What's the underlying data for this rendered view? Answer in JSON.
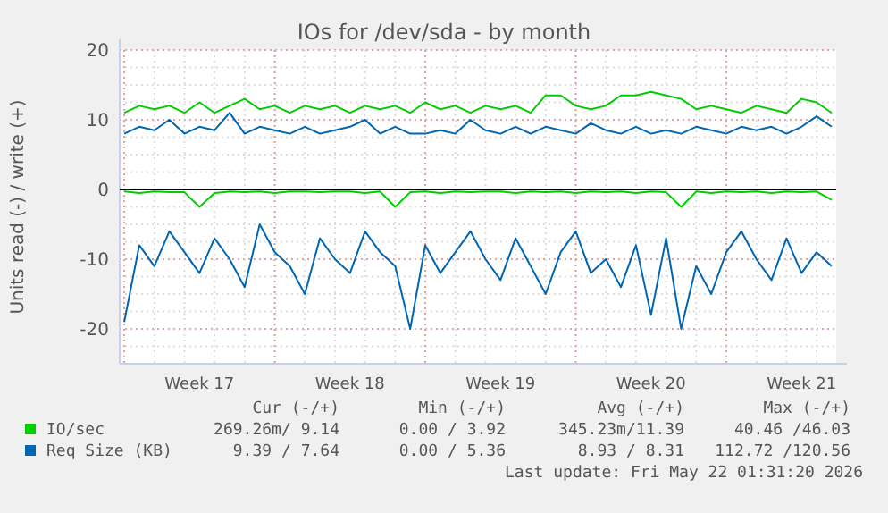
{
  "chart_data": {
    "type": "line",
    "title": "IOs for /dev/sda - by month",
    "ylabel": "Units read (-) / write (+)",
    "categories": [
      null,
      null,
      null,
      null,
      null,
      "Week 17",
      null,
      null,
      null,
      null,
      null,
      null,
      null,
      null,
      null,
      "Week 18",
      null,
      null,
      null,
      null,
      null,
      null,
      null,
      null,
      null,
      "Week 19",
      null,
      null,
      null,
      null,
      null,
      null,
      null,
      null,
      null,
      "Week 20",
      null,
      null,
      null,
      null,
      null,
      null,
      null,
      null,
      null,
      "Week 21",
      null,
      null
    ],
    "ylim": [
      -25,
      20
    ],
    "yticks": [
      -20,
      -10,
      0,
      10,
      20
    ],
    "grid": true,
    "legend": "bottom",
    "marker": "none",
    "line_style": "solid",
    "series": [
      {
        "name": "IO/sec",
        "color": "#00cc00",
        "values": [
          11,
          12,
          11.5,
          12,
          11,
          12.5,
          11,
          12,
          13,
          11.5,
          12,
          11,
          12,
          11.5,
          12,
          11,
          12,
          11.5,
          12,
          11,
          12.5,
          11.5,
          12,
          11,
          12,
          11.5,
          12,
          11,
          13.5,
          13.5,
          12,
          11.5,
          12,
          13.5,
          13.5,
          14,
          13.5,
          13,
          11.5,
          12,
          11.5,
          11,
          12,
          11.5,
          11,
          13,
          12.5,
          11
        ]
      },
      {
        "color": "#00cc00",
        "values": [
          -0.3,
          -0.5,
          -0.3,
          -0.4,
          -0.4,
          -2.5,
          -0.5,
          -0.3,
          -0.4,
          -0.3,
          -0.5,
          -0.3,
          -0.3,
          -0.4,
          -0.3,
          -0.3,
          -0.5,
          -0.3,
          -2.5,
          -0.4,
          -0.3,
          -0.5,
          -0.3,
          -0.4,
          -0.3,
          -0.3,
          -0.5,
          -0.3,
          -0.4,
          -0.3,
          -0.5,
          -0.3,
          -0.4,
          -0.3,
          -0.5,
          -0.3,
          -0.4,
          -2.5,
          -0.3,
          -0.5,
          -0.3,
          -0.4,
          -0.3,
          -0.5,
          -0.3,
          -0.4,
          -0.3,
          -1.5
        ]
      },
      {
        "name": "Req Size (KB)",
        "color": "#0066b3",
        "values": [
          8,
          9,
          8.5,
          10,
          8,
          9,
          8.5,
          11,
          8,
          9,
          8.5,
          8,
          9,
          8,
          8.5,
          9,
          10,
          8,
          9,
          8,
          8,
          8.5,
          8,
          10,
          8.5,
          8,
          9,
          8,
          9,
          8.5,
          8,
          9.5,
          8.5,
          8,
          9,
          8,
          8.5,
          8,
          9,
          8.5,
          8,
          9,
          8.5,
          9,
          8,
          9,
          10.5,
          9
        ]
      },
      {
        "color": "#0066b3",
        "values": [
          -19,
          -8,
          -11,
          -6,
          -9,
          -12,
          -7,
          -10,
          -14,
          -5,
          -9,
          -11,
          -15,
          -7,
          -10,
          -12,
          -6,
          -9,
          -11,
          -20,
          -8,
          -12,
          -9,
          -6,
          -10,
          -13,
          -7,
          -11,
          -15,
          -9,
          -6,
          -12,
          -10,
          -14,
          -8,
          -18,
          -7,
          -20,
          -11,
          -15,
          -9,
          -6,
          -10,
          -13,
          -7,
          -12,
          -9,
          -11
        ]
      }
    ],
    "annotations": [
      "Cur (-/+)",
      "Min (-/+)",
      "Avg (-/+)",
      "Max (-/+)",
      "269.26m/ 9.14",
      "0.00 / 3.92",
      "345.23m/11.39",
      "40.46 /46.03",
      "9.39 / 7.64",
      "0.00 / 5.36",
      "8.93 / 8.31",
      "112.72 /120.56",
      "Last update: Fri May 22 01:31:20 2026"
    ]
  }
}
